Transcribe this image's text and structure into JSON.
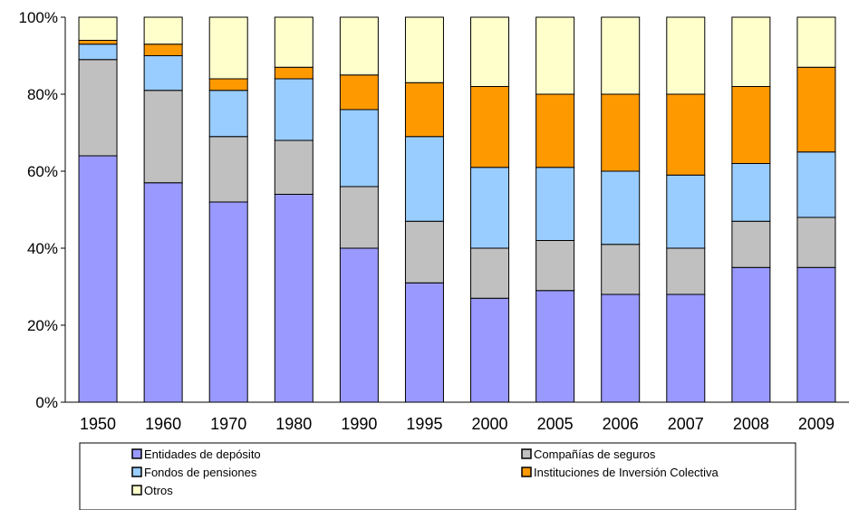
{
  "chart_data": {
    "type": "bar",
    "stacked": "percent",
    "categories": [
      "1950",
      "1960",
      "1970",
      "1980",
      "1990",
      "1995",
      "2000",
      "2005",
      "2006",
      "2007",
      "2008",
      "2009"
    ],
    "series": [
      {
        "name": "Entidades de depósito",
        "color": "#9999ff",
        "values": [
          64,
          57,
          52,
          54,
          40,
          31,
          27,
          29,
          28,
          28,
          35,
          35
        ]
      },
      {
        "name": "Compañías de seguros",
        "color": "#c0c0c0",
        "values": [
          25,
          24,
          17,
          14,
          16,
          16,
          13,
          13,
          13,
          12,
          12,
          13
        ]
      },
      {
        "name": "Fondos de pensiones",
        "color": "#99ccff",
        "values": [
          4,
          9,
          12,
          16,
          20,
          22,
          21,
          19,
          19,
          19,
          15,
          17
        ]
      },
      {
        "name": "Instituciones de Inversión Colectiva",
        "color": "#ff9900",
        "values": [
          1,
          3,
          3,
          3,
          9,
          14,
          21,
          19,
          20,
          21,
          20,
          22
        ]
      },
      {
        "name": "Otros",
        "color": "#ffffcc",
        "values": [
          6,
          7,
          16,
          13,
          15,
          17,
          18,
          20,
          20,
          20,
          18,
          13
        ]
      }
    ],
    "yticks": [
      "0%",
      "20%",
      "40%",
      "60%",
      "80%",
      "100%"
    ],
    "ylim": [
      0,
      100
    ],
    "grid": false,
    "legend_position": "bottom"
  }
}
